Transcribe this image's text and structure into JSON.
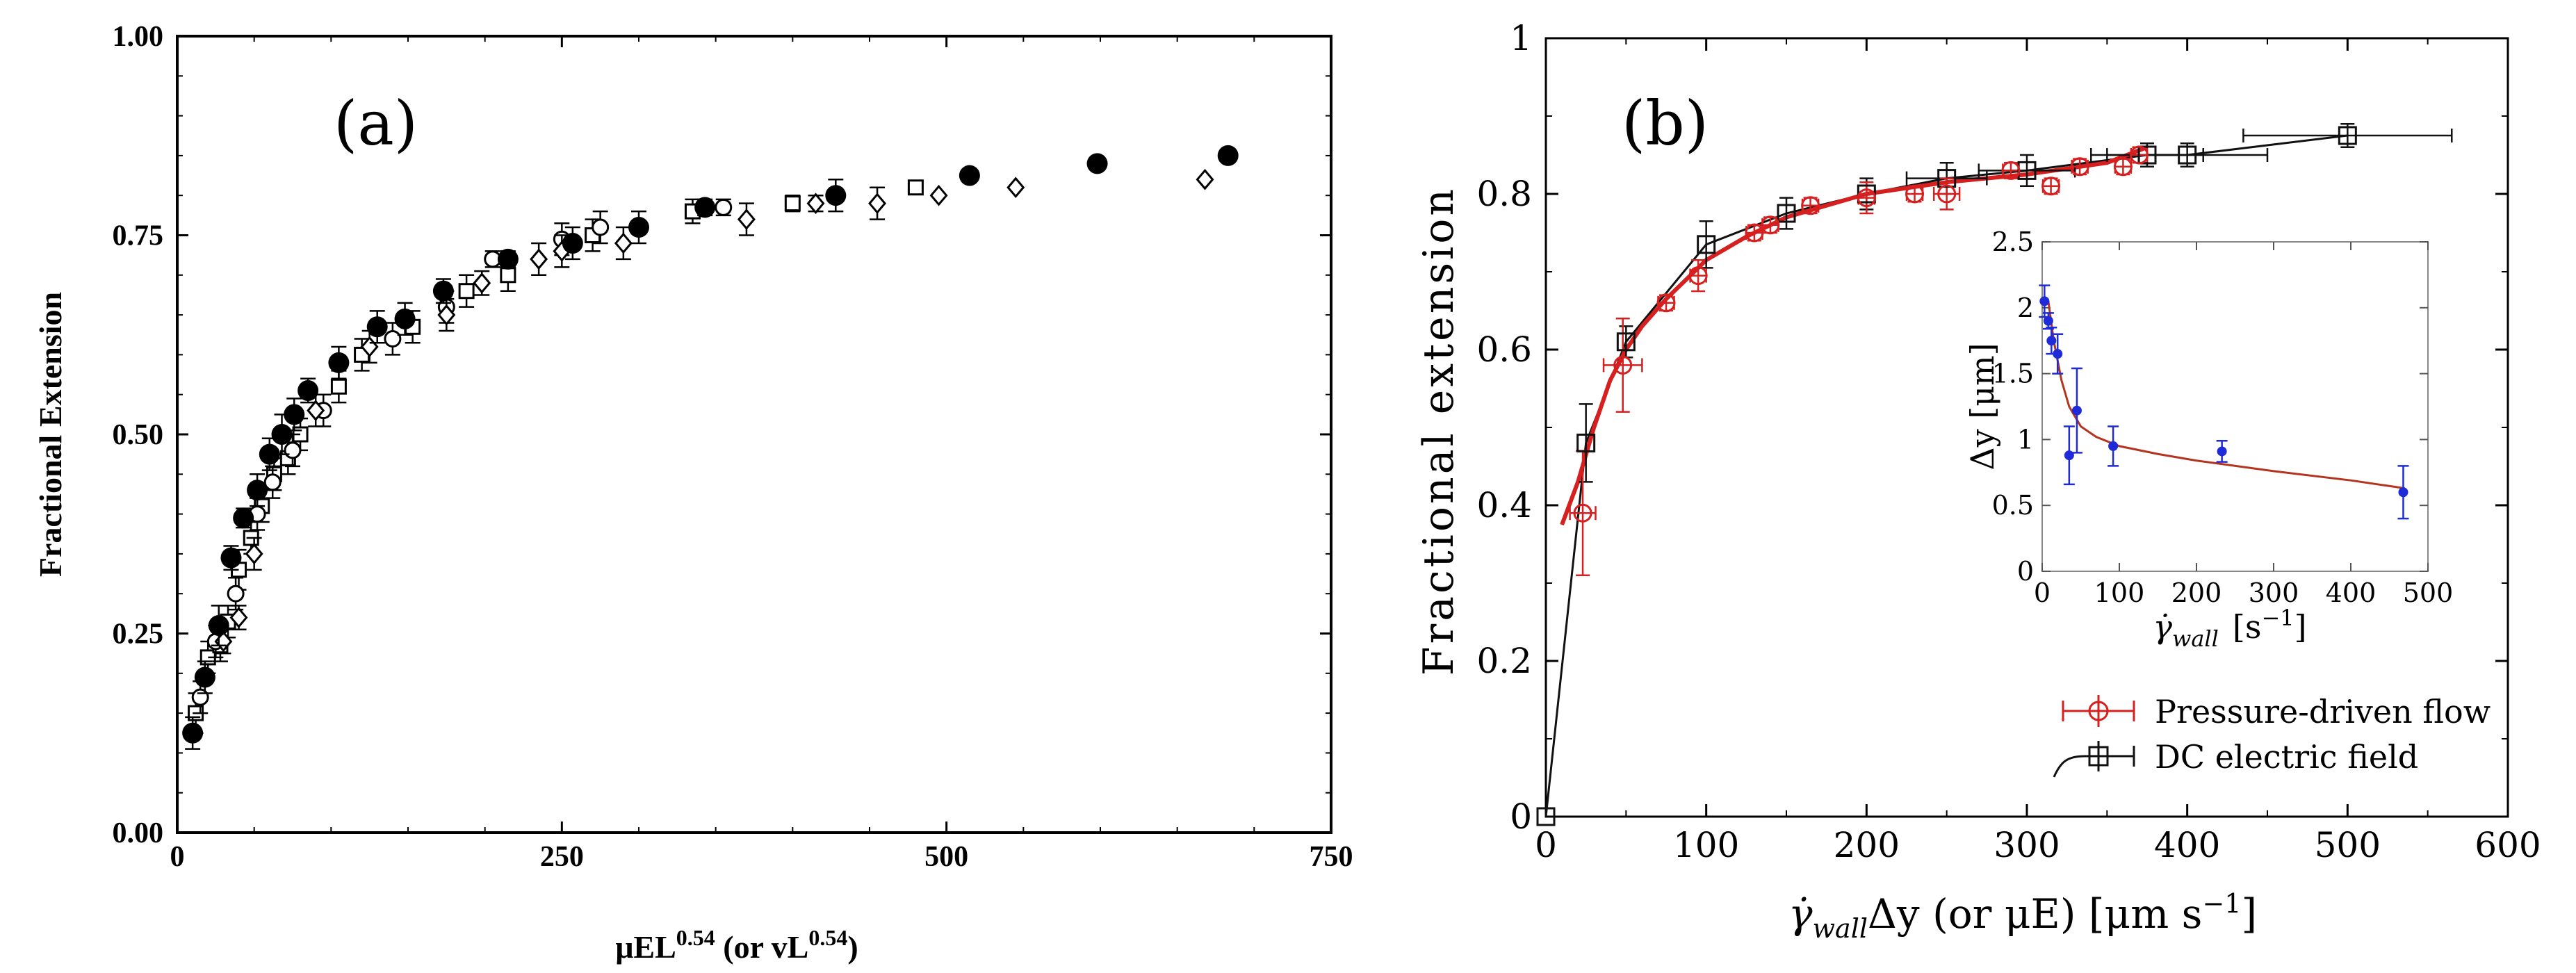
{
  "chart_data": [
    {
      "type": "scatter",
      "panel_label": "(a)",
      "xlabel_main": "μEL",
      "xlabel_sup": "0.54",
      "xlabel_mid": " (or vL",
      "xlabel_sup2": "0.54",
      "xlabel_end": ")",
      "ylabel": "Fractional Extension",
      "xlim": [
        0,
        750
      ],
      "ylim": [
        0,
        1
      ],
      "xticks": [
        0,
        250,
        500,
        750
      ],
      "xtick_labels": [
        "0",
        "250",
        "500",
        "750"
      ],
      "yticks": [
        0,
        0.25,
        0.5,
        0.75,
        1.0
      ],
      "ytick_labels": [
        "0.00",
        "0.25",
        "0.50",
        "0.75",
        "1.00"
      ],
      "series": [
        {
          "name": "filled circles",
          "marker": "filled-circle",
          "x": [
            10,
            18,
            27,
            35,
            43,
            52,
            60,
            68,
            76,
            85,
            105,
            130,
            148,
            173,
            215,
            257,
            300,
            343,
            428,
            515,
            598,
            683
          ],
          "y": [
            0.125,
            0.195,
            0.26,
            0.345,
            0.395,
            0.43,
            0.475,
            0.5,
            0.525,
            0.555,
            0.59,
            0.635,
            0.645,
            0.68,
            0.72,
            0.74,
            0.76,
            0.785,
            0.8,
            0.825,
            0.84,
            0.85
          ],
          "err": [
            0.02,
            0.02,
            0.025,
            0.015,
            0.012,
            0.02,
            0.02,
            0.025,
            0.02,
            0.015,
            0.02,
            0.02,
            0.02,
            0.015,
            0.01,
            0.02,
            0.02,
            0.01,
            0.02,
            0,
            0,
            0
          ]
        },
        {
          "name": "open squares",
          "marker": "open-square",
          "x": [
            12,
            20,
            28,
            33,
            40,
            48,
            55,
            63,
            72,
            80,
            105,
            120,
            153,
            188,
            215,
            270,
            335,
            400,
            480
          ],
          "y": [
            0.15,
            0.22,
            0.235,
            0.265,
            0.33,
            0.37,
            0.41,
            0.45,
            0.47,
            0.5,
            0.56,
            0.6,
            0.635,
            0.68,
            0.7,
            0.75,
            0.78,
            0.79,
            0.81
          ],
          "err": [
            0.025,
            0.02,
            0.02,
            0.02,
            0.025,
            0.02,
            0.02,
            0.02,
            0.02,
            0.02,
            0.02,
            0.02,
            0.02,
            0.02,
            0.02,
            0.02,
            0.015,
            0.01,
            0
          ]
        },
        {
          "name": "open circles",
          "marker": "open-circle",
          "x": [
            15,
            25,
            38,
            52,
            62,
            75,
            95,
            140,
            175,
            205,
            250,
            275,
            355
          ],
          "y": [
            0.17,
            0.24,
            0.3,
            0.4,
            0.44,
            0.48,
            0.53,
            0.62,
            0.66,
            0.72,
            0.745,
            0.76,
            0.785
          ],
          "err": [
            0.02,
            0.02,
            0.02,
            0.02,
            0.02,
            0.02,
            0.02,
            0.02,
            0.02,
            0.01,
            0.02,
            0.02,
            0.01
          ]
        },
        {
          "name": "open diamonds",
          "marker": "open-diamond",
          "x": [
            30,
            40,
            50,
            90,
            125,
            175,
            198,
            235,
            250,
            290,
            370,
            415,
            455,
            495,
            545,
            668
          ],
          "y": [
            0.24,
            0.27,
            0.35,
            0.53,
            0.61,
            0.65,
            0.69,
            0.72,
            0.73,
            0.74,
            0.77,
            0.79,
            0.79,
            0.8,
            0.81,
            0.82
          ],
          "err": [
            0.015,
            0.015,
            0.02,
            0.02,
            0.02,
            0.02,
            0.015,
            0.02,
            0.02,
            0.02,
            0.02,
            0.01,
            0.02,
            0,
            0,
            0
          ]
        }
      ]
    },
    {
      "type": "line",
      "panel_label": "(b)",
      "xlabel": "γ̇wall Δy (or μE) [μm s⁻¹]",
      "xlabel_parts": {
        "gamma": "γ̇",
        "sub": "wall",
        "rest": "Δy  (or  μE)  [μm  s",
        "exp": "−1",
        "close": "]"
      },
      "ylabel": "Fractional extension",
      "xlim": [
        0,
        600
      ],
      "ylim": [
        0,
        1
      ],
      "xticks": [
        0,
        100,
        200,
        300,
        400,
        500,
        600
      ],
      "xtick_labels": [
        "0",
        "100",
        "200",
        "300",
        "400",
        "500",
        "600"
      ],
      "yticks": [
        0,
        0.2,
        0.4,
        0.6,
        0.8,
        1
      ],
      "ytick_labels": [
        "0",
        "0.2",
        "0.4",
        "0.6",
        "0.8",
        "1"
      ],
      "series": [
        {
          "name": "Pressure-driven flow",
          "color": "#d62020",
          "marker": "open-circle",
          "x": [
            23,
            48,
            75,
            95,
            130,
            140,
            165,
            200,
            230,
            250,
            290,
            315,
            333,
            360,
            370
          ],
          "y": [
            0.39,
            0.58,
            0.66,
            0.695,
            0.75,
            0.76,
            0.785,
            0.795,
            0.8,
            0.8,
            0.83,
            0.81,
            0.835,
            0.835,
            0.85
          ],
          "yerr": [
            0.08,
            0.06,
            0.01,
            0.02,
            0.01,
            0.01,
            0.01,
            0.02,
            0.01,
            0.02,
            0.01,
            0.01,
            0.01,
            0.01,
            0.01
          ],
          "xerr": [
            8,
            12,
            5,
            5,
            5,
            5,
            5,
            5,
            5,
            8,
            5,
            5,
            5,
            5,
            5
          ]
        },
        {
          "name": "DC electric field",
          "color": "#111111",
          "marker": "open-square",
          "x": [
            0,
            25,
            50,
            100,
            150,
            200,
            250,
            300,
            375,
            400,
            500
          ],
          "y": [
            0,
            0.48,
            0.61,
            0.735,
            0.775,
            0.8,
            0.82,
            0.83,
            0.85,
            0.85,
            0.875
          ],
          "yerr": [
            0,
            0.05,
            0.02,
            0.03,
            0.02,
            0.02,
            0.02,
            0.02,
            0.015,
            0.015,
            0.015
          ],
          "xerr": [
            0,
            0,
            0,
            0,
            0,
            0,
            25,
            30,
            35,
            50,
            65
          ]
        }
      ],
      "fit_curve": {
        "name": "red fit",
        "color": "#d62020",
        "x": [
          10,
          20,
          30,
          40,
          50,
          60,
          75,
          100,
          125,
          150,
          175,
          200,
          250,
          300,
          350,
          375
        ],
        "y": [
          0.375,
          0.43,
          0.5,
          0.56,
          0.6,
          0.63,
          0.665,
          0.715,
          0.745,
          0.77,
          0.785,
          0.8,
          0.815,
          0.825,
          0.84,
          0.86
        ]
      },
      "legend_position": "bottom-right",
      "inset": {
        "type": "scatter",
        "xlabel_gamma": "γ̇",
        "xlabel_sub": "wall",
        "xlabel_units": "[s",
        "xlabel_exp": "−1",
        "xlabel_close": "]",
        "ylabel": "Δy [μm]",
        "xlim": [
          0,
          500
        ],
        "ylim": [
          0,
          2.5
        ],
        "xticks": [
          0,
          100,
          200,
          300,
          400,
          500
        ],
        "xtick_labels": [
          "0",
          "100",
          "200",
          "300",
          "400",
          "500"
        ],
        "yticks": [
          0,
          0.5,
          1,
          1.5,
          2,
          2.5
        ],
        "ytick_labels": [
          "0",
          "0.5",
          "1",
          "1.5",
          "2",
          "2.5"
        ],
        "points": {
          "color": "#1f2bd6",
          "x": [
            3,
            8,
            12,
            20,
            35,
            45,
            92,
            233,
            468
          ],
          "y": [
            2.05,
            1.9,
            1.75,
            1.65,
            0.88,
            1.22,
            0.95,
            0.91,
            0.6
          ],
          "err": [
            0.12,
            0.06,
            0.1,
            0.15,
            0.22,
            0.32,
            0.15,
            0.08,
            0.2
          ]
        },
        "fit": {
          "color": "#b5341f",
          "x": [
            8,
            15,
            25,
            35,
            50,
            70,
            100,
            150,
            200,
            300,
            400,
            470
          ],
          "y": [
            2.05,
            1.75,
            1.45,
            1.25,
            1.1,
            1.02,
            0.95,
            0.89,
            0.84,
            0.76,
            0.69,
            0.63
          ]
        }
      }
    }
  ]
}
